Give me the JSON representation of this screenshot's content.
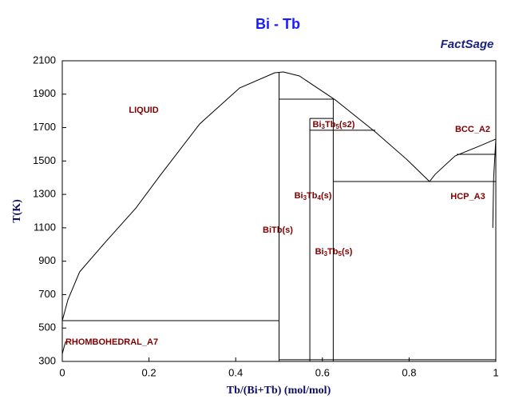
{
  "chart_data": {
    "type": "phase-diagram",
    "title": "Bi - Tb",
    "logo": "FactSage",
    "x_label": "Tb/(Bi+Tb) (mol/mol)",
    "y_label": "T(K)",
    "xlim": [
      0,
      1
    ],
    "ylim": [
      300,
      2100
    ],
    "xticks": [
      0,
      0.2,
      0.4,
      0.6,
      0.8,
      1
    ],
    "yticks": [
      300,
      500,
      700,
      900,
      1100,
      1300,
      1500,
      1700,
      1900,
      2100
    ],
    "line_color": "#000000",
    "label_color": "#800000",
    "phase_labels": [
      "LIQUID",
      "Bi3Tb5(s2)",
      "BCC_A2",
      "Bi3Tb4(s)",
      "HCP_A3",
      "BiTb(s)",
      "Bi3Tb5(s)",
      "RHOMBOHEDRAL_A7"
    ],
    "lines": [
      {
        "x": [
          0,
          0.013,
          0.04,
          0.096,
          0.17,
          0.225,
          0.317,
          0.409,
          0.49,
          0.51,
          0.547,
          0.63,
          0.722,
          0.796,
          0.847
        ],
        "y": [
          544,
          669,
          836,
          1004,
          1219,
          1411,
          1722,
          1937,
          2028,
          2033,
          2009,
          1865,
          1674,
          1506,
          1377
        ]
      },
      {
        "x": [
          0.847,
          0.86,
          0.906,
          0.961,
          1
        ],
        "y": [
          1377,
          1420,
          1530,
          1588,
          1631
        ]
      },
      {
        "x": [
          0,
          0.5
        ],
        "y": [
          544,
          544
        ]
      },
      {
        "x": [
          0.5,
          0.625
        ],
        "y": [
          1870,
          1870
        ]
      },
      {
        "x": [
          0.571,
          0.625
        ],
        "y": [
          1755,
          1755
        ]
      },
      {
        "x": [
          0.571,
          0.722
        ],
        "y": [
          1684,
          1684
        ]
      },
      {
        "x": [
          0.625,
          1
        ],
        "y": [
          1377,
          1377
        ]
      },
      {
        "x": [
          0.91,
          1
        ],
        "y": [
          1540,
          1540
        ]
      },
      {
        "x": [
          0.5,
          1
        ],
        "y": [
          310,
          310
        ]
      },
      {
        "x": [
          0.5,
          0.5
        ],
        "y": [
          300,
          2033
        ]
      },
      {
        "x": [
          0.571,
          0.571
        ],
        "y": [
          300,
          1755
        ]
      },
      {
        "x": [
          0.625,
          0.625
        ],
        "y": [
          300,
          1870
        ]
      },
      {
        "x": [
          0.993,
          0.995,
          1
        ],
        "y": [
          1100,
          1400,
          1631
        ]
      },
      {
        "x": [
          0,
          0.004,
          0.008
        ],
        "y": [
          345,
          385,
          420
        ]
      }
    ]
  }
}
